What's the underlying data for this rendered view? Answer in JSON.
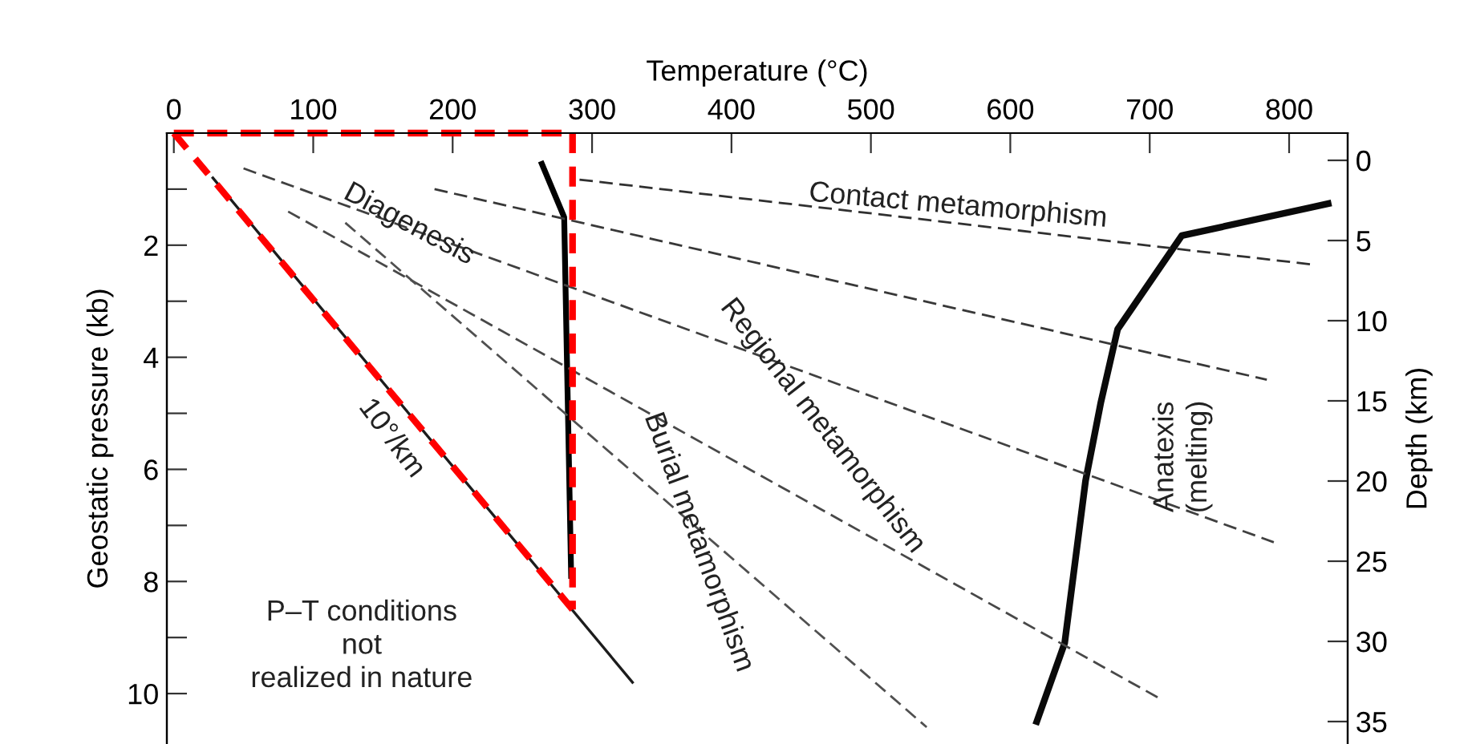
{
  "chart_data": {
    "type": "line",
    "xlabel": "Temperature (°C)",
    "ylabel": "Geostatic pressure (kb)",
    "y2label": "Depth (km)",
    "xlim": [
      -5,
      842
    ],
    "xticks": [
      0,
      100,
      200,
      300,
      400,
      500,
      600,
      700,
      800
    ],
    "ylim": [
      10.9,
      0
    ],
    "yticks": [
      {
        "value": 1,
        "label": null
      },
      2,
      {
        "value": 3,
        "label": null
      },
      4,
      {
        "value": 5,
        "label": null
      },
      6,
      {
        "value": 7,
        "label": null
      },
      8,
      {
        "value": 9,
        "label": null
      },
      10
    ],
    "y2lim": [
      36.4,
      -1.7
    ],
    "y2ticks": [
      0,
      5,
      10,
      15,
      20,
      25,
      30,
      35
    ],
    "series": [
      {
        "color": "#ff0000",
        "line_style": "dashed",
        "x": [
          0,
          286
        ],
        "values": [
          0,
          0
        ]
      },
      {
        "color": "#ff0000",
        "line_style": "dashed",
        "x": [
          286,
          286
        ],
        "values": [
          0,
          8.5
        ]
      },
      {
        "color": "#ff0000",
        "line_style": "dashed",
        "x": [
          0,
          286
        ],
        "values": [
          0,
          8.5
        ]
      },
      {
        "color": "#1c1c1c",
        "line_style": "solid",
        "x": [
          28,
          329
        ],
        "values": [
          0.8,
          9.8
        ]
      },
      {
        "color": "#000000",
        "line_style": "solid",
        "x": [
          264,
          280,
          285
        ],
        "values": [
          0.55,
          1.5,
          7.9
        ]
      },
      {
        "color": "#0a0a0a",
        "line_style": "solid",
        "x": [
          619,
          639,
          654,
          665,
          677,
          723,
          828
        ],
        "values": [
          10.5,
          9.1,
          6.2,
          4.8,
          3.5,
          1.83,
          1.26
        ]
      },
      {
        "color": "#303030",
        "line_style": "dashed",
        "x": [
          291,
          815
        ],
        "values": [
          0.83,
          2.34
        ]
      },
      {
        "color": "#383838",
        "line_style": "dashed",
        "x": [
          187,
          784
        ],
        "values": [
          1.0,
          4.4
        ]
      },
      {
        "color": "#404040",
        "line_style": "dashed",
        "x": [
          50,
          789
        ],
        "values": [
          0.63,
          7.3
        ]
      },
      {
        "color": "#484848",
        "line_style": "dashed",
        "x": [
          82,
          708
        ],
        "values": [
          1.4,
          10.1
        ]
      },
      {
        "color": "#505050",
        "line_style": "dashed",
        "x": [
          123,
          540
        ],
        "values": [
          1.6,
          10.6
        ]
      }
    ],
    "annotations": [
      "Contact metamorphism",
      "Diagenesis",
      "Regional metamorphism",
      "Burial metamorphism",
      "Anatexis\n(melting)",
      "10°/km",
      "P–T conditions\nnot\nrealized in nature"
    ]
  }
}
